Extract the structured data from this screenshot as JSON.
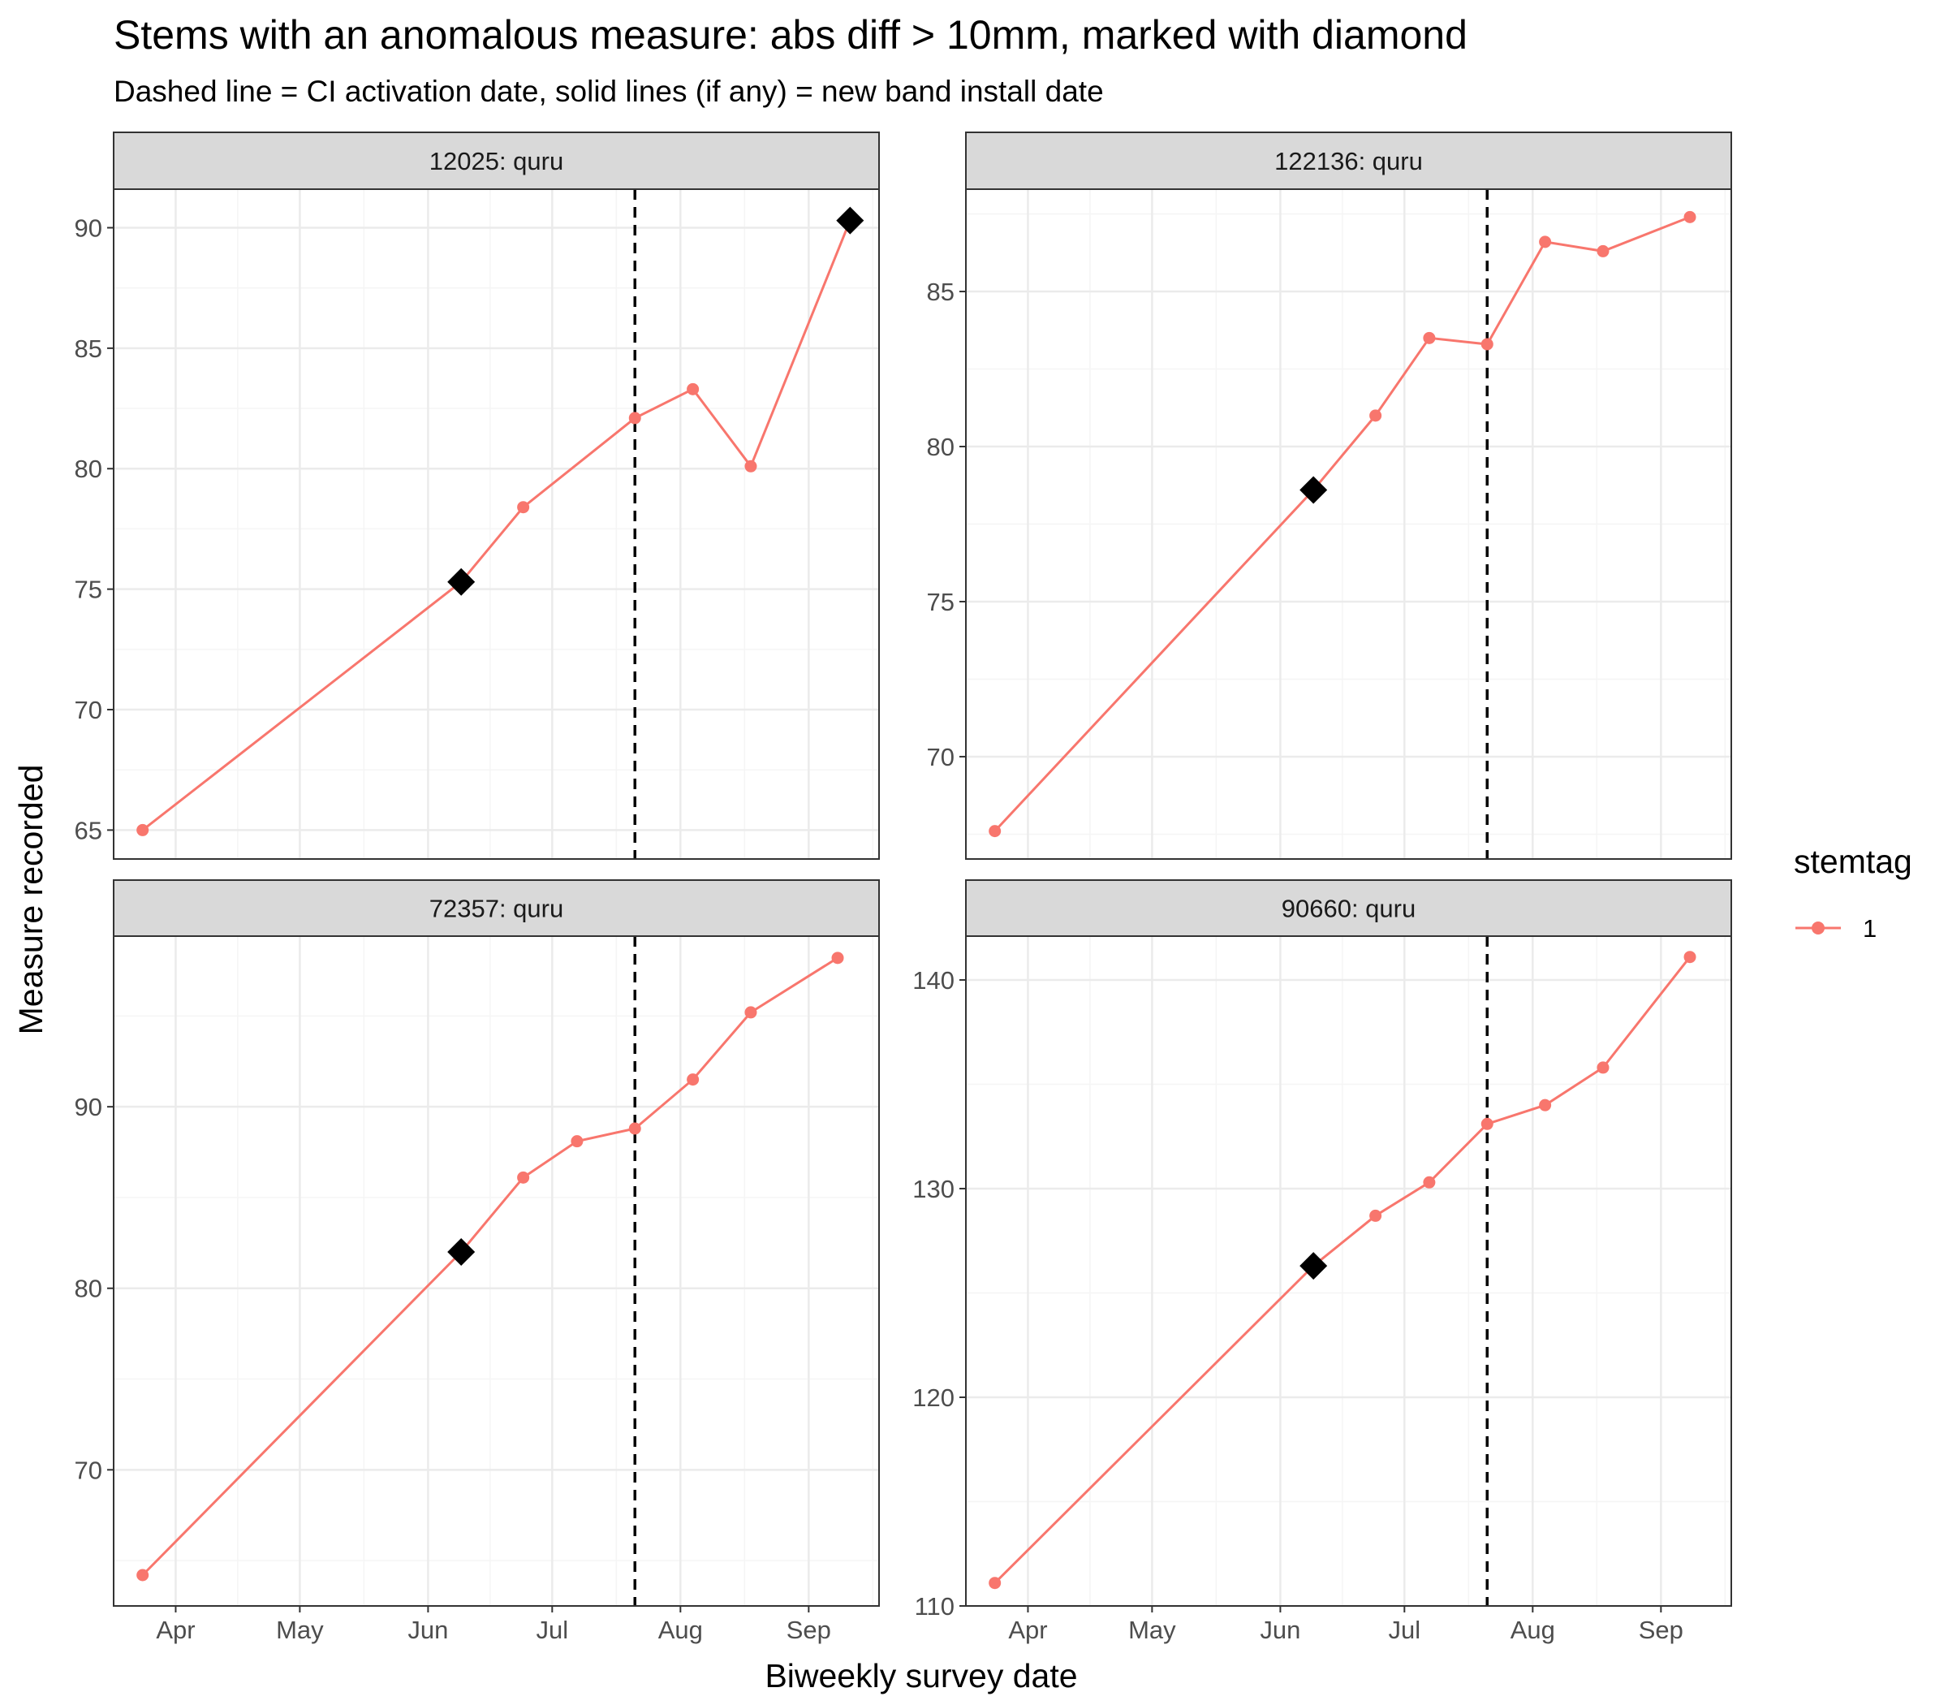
{
  "title": "Stems with an anomalous measure: abs diff > 10mm, marked with diamond",
  "subtitle": "Dashed line = CI activation date, solid lines (if any) = new band install date",
  "xlabel": "Biweekly survey date",
  "ylabel": "Measure recorded",
  "legend": {
    "title": "stemtag",
    "items": [
      "1"
    ]
  },
  "colors": {
    "series": "#F8766D",
    "panel_strip": "#D9D9D9",
    "grid_major": "#EBEBEB",
    "grid_minor": "#F5F5F5",
    "anomaly": "#000000"
  },
  "chart_data": {
    "type": "line",
    "facet": "small-multiples 2x2",
    "x_axis": {
      "type": "date",
      "range": [
        "2019-03-17",
        "2019-09-18"
      ],
      "ticks": [
        {
          "date": "2019-04-01",
          "label": "Apr"
        },
        {
          "date": "2019-05-01",
          "label": "May"
        },
        {
          "date": "2019-06-01",
          "label": "Jun"
        },
        {
          "date": "2019-07-01",
          "label": "Jul"
        },
        {
          "date": "2019-08-01",
          "label": "Aug"
        },
        {
          "date": "2019-09-01",
          "label": "Sep"
        }
      ]
    },
    "ci_activation_date": "2019-07-21",
    "grid": true,
    "legend_position": "right",
    "panels": [
      {
        "label": "12025: quru",
        "ylim": [
          63.8,
          91.6
        ],
        "yticks": [
          65,
          70,
          75,
          80,
          85,
          90
        ],
        "series": [
          {
            "name": "1",
            "points": [
              {
                "date": "2019-03-24",
                "y": 65.0
              },
              {
                "date": "2019-06-09",
                "y": 75.3
              },
              {
                "date": "2019-06-24",
                "y": 78.4
              },
              {
                "date": "2019-07-21",
                "y": 82.1
              },
              {
                "date": "2019-08-04",
                "y": 83.3
              },
              {
                "date": "2019-08-18",
                "y": 80.1
              },
              {
                "date": "2019-09-11",
                "y": 90.3
              }
            ]
          }
        ],
        "anomalies": [
          {
            "date": "2019-06-09",
            "y": 75.3
          },
          {
            "date": "2019-09-11",
            "y": 90.3
          }
        ]
      },
      {
        "label": "122136: quru",
        "ylim": [
          66.7,
          88.3
        ],
        "yticks": [
          70,
          75,
          80,
          85
        ],
        "series": [
          {
            "name": "1",
            "points": [
              {
                "date": "2019-03-24",
                "y": 67.6
              },
              {
                "date": "2019-06-09",
                "y": 78.6
              },
              {
                "date": "2019-06-24",
                "y": 81.0
              },
              {
                "date": "2019-07-07",
                "y": 83.5
              },
              {
                "date": "2019-07-21",
                "y": 83.3
              },
              {
                "date": "2019-08-04",
                "y": 86.6
              },
              {
                "date": "2019-08-18",
                "y": 86.3
              },
              {
                "date": "2019-09-08",
                "y": 87.4
              }
            ]
          }
        ],
        "anomalies": [
          {
            "date": "2019-06-09",
            "y": 78.6
          }
        ]
      },
      {
        "label": "72357: quru",
        "ylim": [
          62.5,
          99.4
        ],
        "yticks": [
          70,
          80,
          90
        ],
        "series": [
          {
            "name": "1",
            "points": [
              {
                "date": "2019-03-24",
                "y": 64.2
              },
              {
                "date": "2019-06-09",
                "y": 82.0
              },
              {
                "date": "2019-06-24",
                "y": 86.1
              },
              {
                "date": "2019-07-07",
                "y": 88.1
              },
              {
                "date": "2019-07-21",
                "y": 88.8
              },
              {
                "date": "2019-08-04",
                "y": 91.5
              },
              {
                "date": "2019-08-18",
                "y": 95.2
              },
              {
                "date": "2019-09-08",
                "y": 98.2
              }
            ]
          }
        ],
        "anomalies": [
          {
            "date": "2019-06-09",
            "y": 82.0
          }
        ]
      },
      {
        "label": "90660: quru",
        "ylim": [
          110.0,
          142.1
        ],
        "yticks": [
          110,
          120,
          130,
          140
        ],
        "series": [
          {
            "name": "1",
            "points": [
              {
                "date": "2019-03-24",
                "y": 111.1
              },
              {
                "date": "2019-06-09",
                "y": 126.3
              },
              {
                "date": "2019-06-24",
                "y": 128.7
              },
              {
                "date": "2019-07-07",
                "y": 130.3
              },
              {
                "date": "2019-07-21",
                "y": 133.1
              },
              {
                "date": "2019-08-04",
                "y": 134.0
              },
              {
                "date": "2019-08-18",
                "y": 135.8
              },
              {
                "date": "2019-09-08",
                "y": 141.1
              }
            ]
          }
        ],
        "anomalies": [
          {
            "date": "2019-06-09",
            "y": 126.3
          }
        ]
      }
    ]
  }
}
